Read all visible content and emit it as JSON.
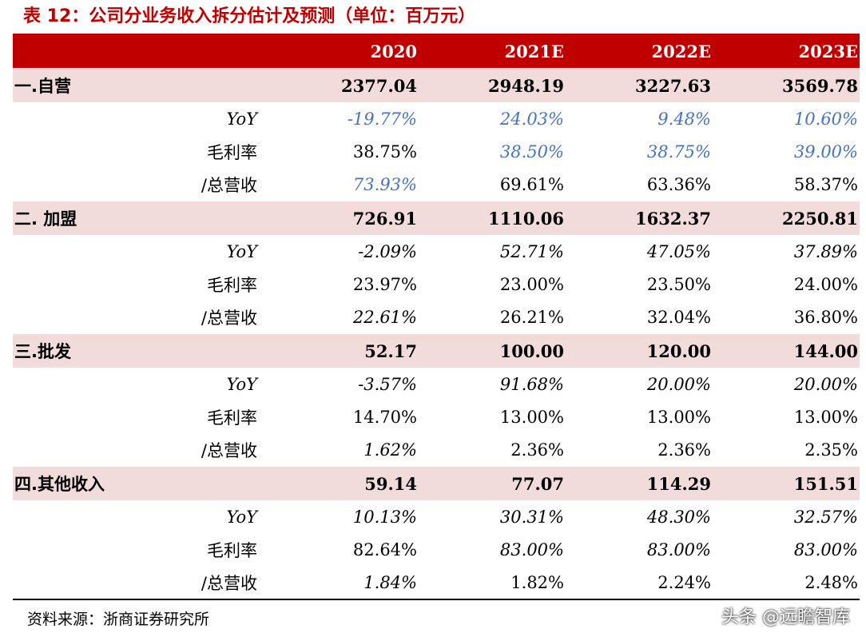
{
  "caption": "表 12：公司分业务收入拆分估计及预测（单位：百万元）",
  "header": {
    "blank": "",
    "years": [
      "2020",
      "2021E",
      "2022E",
      "2023E"
    ]
  },
  "segments": [
    {
      "name": "一.自营",
      "values": [
        "2377.04",
        "2948.19",
        "3227.63",
        "3569.78"
      ],
      "rows": [
        {
          "label": "YoY",
          "values": [
            "-19.77%",
            "24.03%",
            "9.48%",
            "10.60%"
          ]
        },
        {
          "label": "毛利率",
          "values": [
            "38.75%",
            "38.50%",
            "38.75%",
            "39.00%"
          ]
        },
        {
          "label": "/总营收",
          "values": [
            "73.93%",
            "69.61%",
            "63.36%",
            "58.37%"
          ]
        }
      ]
    },
    {
      "name": "二. 加盟",
      "values": [
        "726.91",
        "1110.06",
        "1632.37",
        "2250.81"
      ],
      "rows": [
        {
          "label": "YoY",
          "values": [
            "-2.09%",
            "52.71%",
            "47.05%",
            "37.89%"
          ]
        },
        {
          "label": "毛利率",
          "values": [
            "23.97%",
            "23.00%",
            "23.50%",
            "24.00%"
          ]
        },
        {
          "label": "/总营收",
          "values": [
            "22.61%",
            "26.21%",
            "32.04%",
            "36.80%"
          ]
        }
      ]
    },
    {
      "name": "三.批发",
      "values": [
        "52.17",
        "100.00",
        "120.00",
        "144.00"
      ],
      "rows": [
        {
          "label": "YoY",
          "values": [
            "-3.57%",
            "91.68%",
            "20.00%",
            "20.00%"
          ]
        },
        {
          "label": "毛利率",
          "values": [
            "14.70%",
            "13.00%",
            "13.00%",
            "13.00%"
          ]
        },
        {
          "label": "/总营收",
          "values": [
            "1.62%",
            "2.36%",
            "2.36%",
            "2.35%"
          ]
        }
      ]
    },
    {
      "name": "四.其他收入",
      "values": [
        "59.14",
        "77.07",
        "114.29",
        "151.51"
      ],
      "rows": [
        {
          "label": "YoY",
          "values": [
            "10.13%",
            "30.31%",
            "48.30%",
            "32.57%"
          ]
        },
        {
          "label": "毛利率",
          "values": [
            "82.64%",
            "83.00%",
            "83.00%",
            "83.00%"
          ]
        },
        {
          "label": "/总营收",
          "values": [
            "1.84%",
            "1.82%",
            "2.24%",
            "2.48%"
          ]
        }
      ]
    }
  ],
  "source": "资料来源：浙商证券研究所",
  "watermark": "头条 @远瞻智库",
  "colors": {
    "header_bg": "#c00000",
    "segment_bg": "#f2dcdb",
    "estimate_blue": "#4472c4"
  }
}
